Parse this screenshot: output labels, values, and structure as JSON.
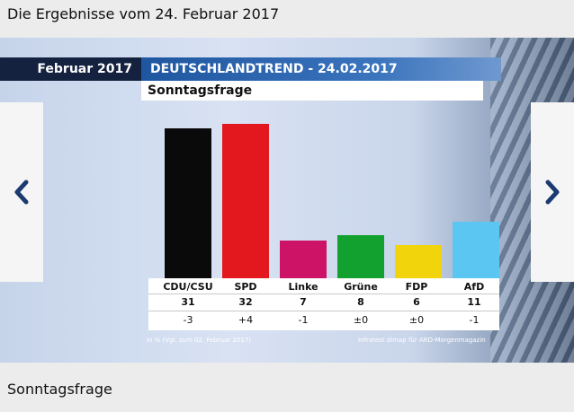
{
  "page": {
    "heading": "Die Ergebnisse vom 24. Februar 2017",
    "caption": "Sonntagsfrage"
  },
  "graphic": {
    "month_label": "Februar 2017",
    "trend_title": "DEUTSCHLANDTREND - 24.02.2017",
    "subtitle": "Sonntagsfrage",
    "footnote_left": "in % (Vgl. zum 02. Februar 2017)",
    "footnote_right": "Infratest dimap für ARD-Morgenmagazin"
  },
  "nav": {
    "prev_icon": "chevron-left-icon",
    "next_icon": "chevron-right-icon",
    "icon_color": "#1a3a70"
  },
  "chart_data": {
    "type": "bar",
    "categories": [
      "CDU/CSU",
      "SPD",
      "Linke",
      "Grüne",
      "FDP",
      "AfD"
    ],
    "values": [
      31,
      32,
      7,
      8,
      6,
      11
    ],
    "changes": [
      "-3",
      "+4",
      "-1",
      "±0",
      "±0",
      "-1"
    ],
    "value_labels": [
      "31",
      "32",
      "7",
      "8",
      "6",
      "11"
    ],
    "colors": [
      "#0a0a0a",
      "#e3171e",
      "#cc1366",
      "#12a02e",
      "#f2d40c",
      "#5cc6f2"
    ],
    "title": "Sonntagsfrage",
    "ylim": [
      0,
      32
    ],
    "grid": false
  }
}
